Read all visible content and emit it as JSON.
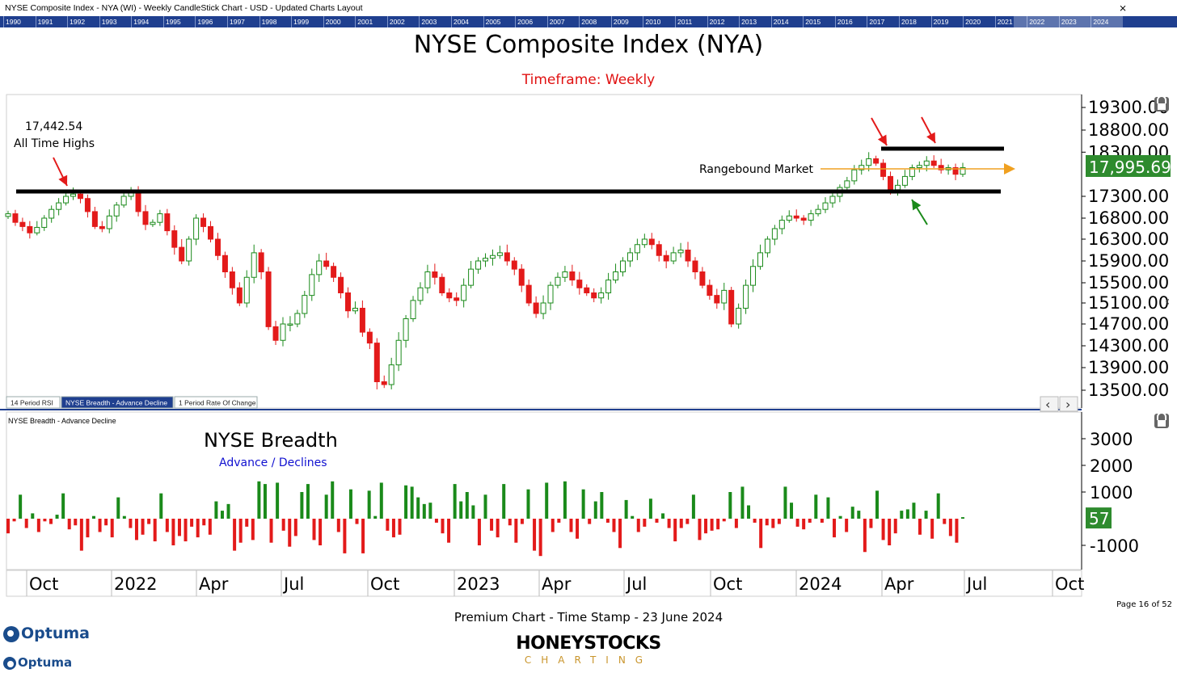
{
  "header": {
    "window_title": "NYSE Composite Index - NYA (WI) - Weekly CandleStick Chart - USD - Updated Charts Layout",
    "years": [
      "1990",
      "1991",
      "1992",
      "1993",
      "1994",
      "1995",
      "1996",
      "1997",
      "1998",
      "1999",
      "2000",
      "2001",
      "2002",
      "2003",
      "2004",
      "2005",
      "2006",
      "2007",
      "2008",
      "2009",
      "2010",
      "2011",
      "2012",
      "2013",
      "2014",
      "2015",
      "2016",
      "2017",
      "2018",
      "2019",
      "2020",
      "2021",
      "2022",
      "2023",
      "2024"
    ]
  },
  "chart_data": [
    {
      "type": "candlestick",
      "title": "NYSE Composite Index (NYA)",
      "subtitle": "Timeframe: Weekly",
      "y_ticks": [
        19300,
        18800,
        18300,
        17995.69,
        17300,
        16800,
        16300,
        15900,
        15500,
        15100,
        14700,
        14300,
        13900,
        13500
      ],
      "y_tick_labels": [
        "19300.00",
        "18800.00",
        "18300.00",
        "17995.69",
        "17300.00",
        "16800.00",
        "16300.00",
        "15900.00",
        "15500.00",
        "15100.00",
        "14700.00",
        "14300.00",
        "13900.00",
        "13500.00"
      ],
      "last_value": "17,995.69",
      "x_tick_labels": [
        "Oct",
        "2022",
        "Apr",
        "Jul",
        "Oct",
        "2023",
        "Apr",
        "Jul",
        "Oct",
        "2024",
        "Apr",
        "Jul",
        "Oct"
      ],
      "close_path": [
        16900,
        16700,
        16600,
        16450,
        16580,
        16800,
        17000,
        17150,
        17300,
        17350,
        17250,
        16950,
        16600,
        16550,
        16850,
        17100,
        17300,
        17400,
        16950,
        16650,
        16700,
        16900,
        16500,
        16150,
        15900,
        16300,
        16800,
        16600,
        16300,
        16000,
        15700,
        15400,
        15100,
        15600,
        16050,
        15700,
        14650,
        14400,
        14700,
        14700,
        14900,
        15250,
        15650,
        15900,
        15800,
        15600,
        15300,
        14950,
        15000,
        14550,
        14350,
        13650,
        13600,
        13950,
        14400,
        14800,
        15150,
        15400,
        15700,
        15600,
        15300,
        15200,
        15150,
        15450,
        15750,
        15900,
        15950,
        16000,
        16050,
        15900,
        15750,
        15450,
        15100,
        14900,
        15100,
        15450,
        15600,
        15700,
        15550,
        15400,
        15300,
        15200,
        15300,
        15550,
        15700,
        15900,
        16050,
        16200,
        16300,
        16200,
        16000,
        15900,
        16050,
        16100,
        15900,
        15700,
        15450,
        15250,
        15100,
        15350,
        14700,
        15000,
        15450,
        15800,
        16050,
        16300,
        16550,
        16750,
        16850,
        16800,
        16750,
        16900,
        17000,
        17150,
        17300,
        17500,
        17650,
        17900,
        18000,
        18150,
        18050,
        17750,
        17450,
        17550,
        17750,
        17950,
        18000,
        18100,
        18000,
        17900,
        17950,
        17800,
        17950
      ],
      "annotations": {
        "ath_value": "17,442.54",
        "ath_label": "All Time Highs",
        "range_label": "Rangebound Market"
      }
    },
    {
      "type": "bar",
      "panel_label": "NYSE Breadth - Advance Decline",
      "title": "NYSE Breadth",
      "subtitle": "Advance / Declines",
      "y_ticks": [
        3000,
        2000,
        1000,
        57,
        -1000
      ],
      "y_tick_labels": [
        "3000",
        "2000",
        "1000",
        "57",
        "-1000"
      ],
      "last_value": "57",
      "values": [
        -550,
        -100,
        900,
        -350,
        200,
        -500,
        -100,
        -200,
        150,
        950,
        -400,
        -250,
        -1200,
        -700,
        100,
        -500,
        -250,
        -700,
        800,
        100,
        -350,
        -800,
        -600,
        -200,
        -850,
        950,
        -500,
        -1000,
        -650,
        -850,
        -300,
        -700,
        -250,
        -600,
        650,
        300,
        550,
        -1200,
        -900,
        -300,
        -800,
        1400,
        1300,
        -900,
        1350,
        -450,
        -1050,
        -650,
        1000,
        1300,
        -800,
        -1000,
        900,
        1400,
        -500,
        -1300,
        1100,
        -200,
        -1300,
        1050,
        100,
        1350,
        -450,
        -700,
        -600,
        1250,
        1200,
        800,
        550,
        600,
        -150,
        -550,
        -900,
        1300,
        650,
        1000,
        500,
        -1000,
        900,
        -450,
        -700,
        1300,
        -250,
        -900,
        -200,
        1100,
        -1200,
        -1400,
        1350,
        -500,
        -150,
        1400,
        -500,
        -750,
        1100,
        -200,
        650,
        1000,
        -150,
        -500,
        -1100,
        700,
        100,
        -500,
        -300,
        750,
        -150,
        200,
        -350,
        -850,
        -350,
        -200,
        900,
        -800,
        -550,
        -450,
        -400,
        -100,
        1000,
        -350,
        1200,
        500,
        -150,
        -1100,
        -250,
        -350,
        -200,
        1200,
        600,
        -300,
        -400,
        -150,
        900,
        -150,
        800,
        -700,
        100,
        -500,
        450,
        300,
        -1250,
        -350,
        1050,
        -800,
        -1000,
        -550,
        300,
        350,
        600,
        -600,
        300,
        -750,
        950,
        -200,
        -650,
        -900,
        57
      ],
      "x_tick_labels": [
        "Oct",
        "2022",
        "Apr",
        "Jul",
        "Oct",
        "2023",
        "Apr",
        "Jul",
        "Oct",
        "2024",
        "Apr",
        "Jul",
        "Oct"
      ]
    }
  ],
  "tabs": [
    "14 Period RSI",
    "NYSE Breadth - Advance Decline",
    "1 Period Rate Of Change"
  ],
  "footer": {
    "timestamp": "Premium Chart - Time Stamp - 23 June 2024",
    "page": "Page 16 of 52",
    "optuma": "Optuma",
    "brand": "HONEYSTOCKS",
    "brand_sub": "CHARTING"
  },
  "colors": {
    "up": "#1a8a1a",
    "down": "#e31a1a",
    "accent": "#1f3f8f",
    "highlight": "#2e8b2e",
    "arrow_orange": "#f0a020"
  }
}
